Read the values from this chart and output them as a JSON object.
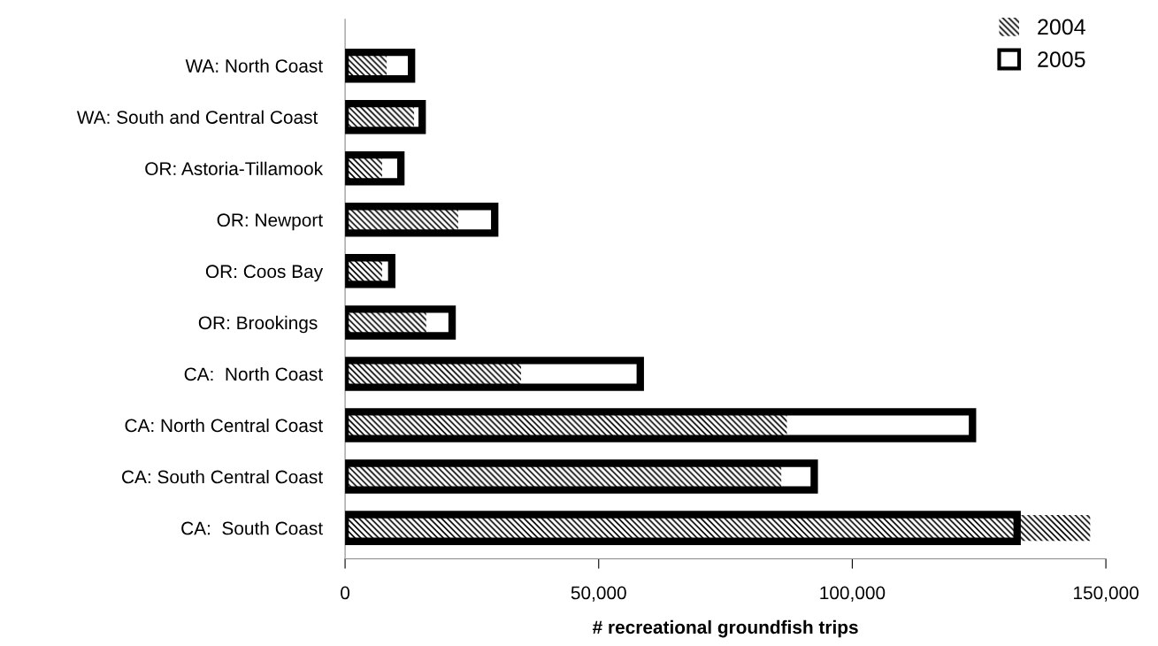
{
  "chart_data": {
    "type": "bar",
    "orientation": "horizontal",
    "xlabel": "# recreational groundfish trips",
    "categories": [
      "WA: North Coast",
      "WA: South and Central Coast ",
      "OR: Astoria-Tillamook",
      "OR: Newport",
      "OR: Coos Bay",
      "OR: Brookings ",
      "CA:  North Coast",
      "CA: North Central Coast",
      "CA: South Central Coast",
      "CA:  South Coast"
    ],
    "series": [
      {
        "name": "2004",
        "color": "#000000",
        "values": [
          8200,
          13600,
          7300,
          22300,
          7300,
          16000,
          34700,
          87100,
          86000,
          146900
        ]
      },
      {
        "name": "2005",
        "color": "#000000",
        "values": [
          13100,
          15200,
          11000,
          29500,
          9200,
          21100,
          58200,
          123700,
          92500,
          132500
        ]
      }
    ],
    "xlim": [
      0,
      150000
    ],
    "xticks": [
      {
        "value": 0,
        "label": "0"
      },
      {
        "value": 50000,
        "label": "50,000"
      },
      {
        "value": 100000,
        "label": "100,000"
      },
      {
        "value": 150000,
        "label": "150,000"
      }
    ],
    "grid": false,
    "legend": "top right"
  }
}
